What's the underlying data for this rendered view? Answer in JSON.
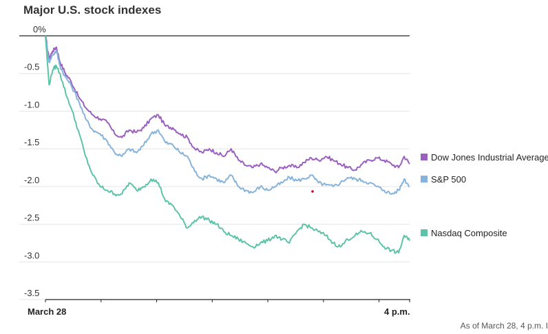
{
  "title": "Major U.S. stock indexes",
  "footnote": "As of March 28, 4 p.m. I",
  "chart_data": {
    "type": "line",
    "title": "Major U.S. stock indexes",
    "xlabel": "",
    "ylabel": "",
    "x_tick_labels": [
      "March 28",
      "4 p.m."
    ],
    "y_ticks": [
      0,
      -0.5,
      -1.0,
      -1.5,
      -2.0,
      -2.5,
      -3.0,
      -3.5
    ],
    "y_tick_labels": [
      "0%",
      "-0.5",
      "-1.0",
      "-1.5",
      "-2.0",
      "-2.5",
      "-3.0",
      "-3.5"
    ],
    "ylim": [
      -3.5,
      0
    ],
    "xlim": [
      0,
      1
    ],
    "grid": true,
    "legend_position": "right, at series end",
    "series": [
      {
        "name": "Dow Jones Industrial Average",
        "color": "#9b5fc0",
        "x": [
          0,
          0.01,
          0.02,
          0.03,
          0.04,
          0.055,
          0.07,
          0.09,
          0.11,
          0.13,
          0.15,
          0.17,
          0.19,
          0.21,
          0.23,
          0.25,
          0.27,
          0.29,
          0.31,
          0.33,
          0.35,
          0.37,
          0.39,
          0.41,
          0.43,
          0.45,
          0.47,
          0.49,
          0.51,
          0.53,
          0.55,
          0.57,
          0.59,
          0.61,
          0.63,
          0.65,
          0.67,
          0.69,
          0.71,
          0.73,
          0.75,
          0.77,
          0.79,
          0.81,
          0.83,
          0.85,
          0.87,
          0.89,
          0.91,
          0.93,
          0.95,
          0.97,
          0.985,
          1.0
        ],
        "values": [
          0,
          -0.3,
          -0.2,
          -0.15,
          -0.35,
          -0.5,
          -0.6,
          -0.8,
          -0.95,
          -1.05,
          -1.1,
          -1.15,
          -1.3,
          -1.35,
          -1.25,
          -1.28,
          -1.22,
          -1.1,
          -1.05,
          -1.2,
          -1.22,
          -1.3,
          -1.35,
          -1.5,
          -1.55,
          -1.5,
          -1.55,
          -1.6,
          -1.5,
          -1.65,
          -1.72,
          -1.75,
          -1.7,
          -1.75,
          -1.8,
          -1.75,
          -1.72,
          -1.75,
          -1.68,
          -1.62,
          -1.65,
          -1.6,
          -1.65,
          -1.7,
          -1.75,
          -1.78,
          -1.7,
          -1.65,
          -1.62,
          -1.65,
          -1.7,
          -1.75,
          -1.6,
          -1.7
        ]
      },
      {
        "name": "S&P 500",
        "color": "#86b3dc",
        "x": [
          0,
          0.01,
          0.02,
          0.03,
          0.04,
          0.055,
          0.07,
          0.09,
          0.11,
          0.13,
          0.15,
          0.17,
          0.19,
          0.21,
          0.23,
          0.25,
          0.27,
          0.29,
          0.31,
          0.33,
          0.35,
          0.37,
          0.39,
          0.41,
          0.43,
          0.45,
          0.47,
          0.49,
          0.51,
          0.53,
          0.55,
          0.57,
          0.59,
          0.61,
          0.63,
          0.65,
          0.67,
          0.69,
          0.71,
          0.73,
          0.75,
          0.77,
          0.79,
          0.81,
          0.83,
          0.85,
          0.87,
          0.89,
          0.91,
          0.93,
          0.95,
          0.97,
          0.985,
          1.0
        ],
        "values": [
          0,
          -0.35,
          -0.25,
          -0.2,
          -0.4,
          -0.55,
          -0.65,
          -0.85,
          -1.1,
          -1.25,
          -1.3,
          -1.4,
          -1.55,
          -1.6,
          -1.5,
          -1.55,
          -1.45,
          -1.3,
          -1.25,
          -1.42,
          -1.45,
          -1.55,
          -1.6,
          -1.8,
          -1.9,
          -1.85,
          -1.9,
          -1.95,
          -1.85,
          -2.0,
          -2.05,
          -2.08,
          -2.0,
          -2.05,
          -2.0,
          -1.95,
          -1.88,
          -1.92,
          -1.9,
          -1.85,
          -1.95,
          -1.98,
          -2.0,
          -1.95,
          -1.88,
          -1.9,
          -1.92,
          -1.95,
          -2.0,
          -2.05,
          -2.1,
          -2.05,
          -1.9,
          -2.0
        ]
      },
      {
        "name": "Nasdaq Composite",
        "color": "#5cc3a8",
        "x": [
          0,
          0.01,
          0.02,
          0.03,
          0.04,
          0.055,
          0.07,
          0.09,
          0.11,
          0.13,
          0.15,
          0.17,
          0.19,
          0.21,
          0.23,
          0.25,
          0.27,
          0.29,
          0.31,
          0.33,
          0.35,
          0.37,
          0.39,
          0.41,
          0.43,
          0.45,
          0.47,
          0.49,
          0.51,
          0.53,
          0.55,
          0.57,
          0.59,
          0.61,
          0.63,
          0.65,
          0.67,
          0.69,
          0.71,
          0.73,
          0.75,
          0.77,
          0.79,
          0.81,
          0.83,
          0.85,
          0.87,
          0.89,
          0.91,
          0.93,
          0.95,
          0.97,
          0.985,
          1.0
        ],
        "values": [
          0,
          -0.65,
          -0.45,
          -0.4,
          -0.5,
          -0.75,
          -0.95,
          -1.25,
          -1.6,
          -1.85,
          -2.0,
          -2.05,
          -2.1,
          -2.1,
          -1.95,
          -2.05,
          -2.0,
          -1.9,
          -1.95,
          -2.2,
          -2.25,
          -2.4,
          -2.55,
          -2.45,
          -2.4,
          -2.45,
          -2.5,
          -2.6,
          -2.65,
          -2.7,
          -2.75,
          -2.8,
          -2.75,
          -2.72,
          -2.65,
          -2.7,
          -2.75,
          -2.6,
          -2.5,
          -2.55,
          -2.6,
          -2.65,
          -2.75,
          -2.8,
          -2.7,
          -2.65,
          -2.6,
          -2.62,
          -2.7,
          -2.8,
          -2.85,
          -2.88,
          -2.65,
          -2.72
        ]
      }
    ]
  }
}
